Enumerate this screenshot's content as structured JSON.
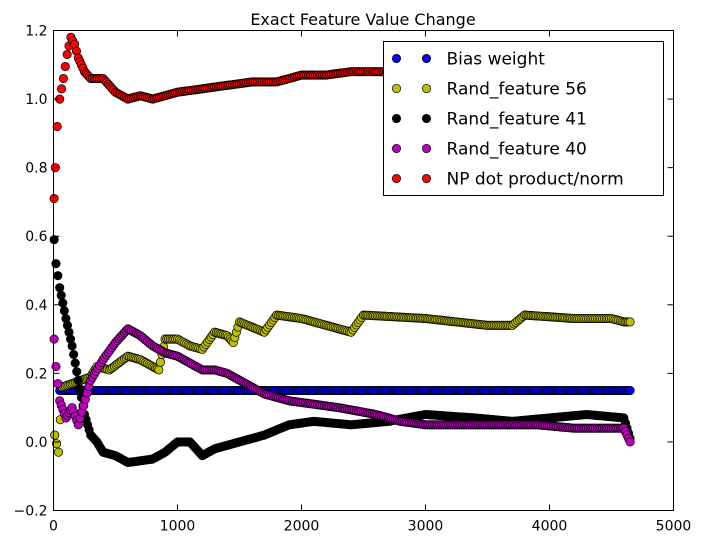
{
  "chart_data": {
    "type": "scatter",
    "title": "Exact Feature Value Change",
    "xlabel": "",
    "ylabel": "",
    "xlim": [
      0,
      5000
    ],
    "ylim": [
      -0.2,
      1.2
    ],
    "x_ticks": [
      "0",
      "1000",
      "2000",
      "3000",
      "4000",
      "5000"
    ],
    "y_ticks": [
      "−0.2",
      "0.0",
      "0.2",
      "0.4",
      "0.6",
      "0.8",
      "1.0",
      "1.2"
    ],
    "grid": false,
    "legend_position": "top-right",
    "series": [
      {
        "name": "Bias weight",
        "color": "#0000ff",
        "points": [
          [
            50,
            0.15
          ],
          [
            500,
            0.15
          ],
          [
            1000,
            0.15
          ],
          [
            1500,
            0.15
          ],
          [
            2000,
            0.15
          ],
          [
            2500,
            0.15
          ],
          [
            3000,
            0.15
          ],
          [
            3500,
            0.15
          ],
          [
            4000,
            0.15
          ],
          [
            4500,
            0.15
          ],
          [
            4650,
            0.15
          ]
        ]
      },
      {
        "name": "Rand_feature 56",
        "color": "#bfbf00",
        "points": [
          [
            10,
            0.02
          ],
          [
            40,
            -0.03
          ],
          [
            70,
            0.16
          ],
          [
            150,
            0.17
          ],
          [
            300,
            0.19
          ],
          [
            350,
            0.22
          ],
          [
            450,
            0.21
          ],
          [
            600,
            0.25
          ],
          [
            700,
            0.24
          ],
          [
            800,
            0.22
          ],
          [
            850,
            0.21
          ],
          [
            900,
            0.3
          ],
          [
            1000,
            0.3
          ],
          [
            1100,
            0.28
          ],
          [
            1200,
            0.27
          ],
          [
            1300,
            0.32
          ],
          [
            1400,
            0.31
          ],
          [
            1450,
            0.29
          ],
          [
            1500,
            0.35
          ],
          [
            1700,
            0.32
          ],
          [
            1800,
            0.37
          ],
          [
            2000,
            0.36
          ],
          [
            2200,
            0.34
          ],
          [
            2400,
            0.32
          ],
          [
            2500,
            0.37
          ],
          [
            3000,
            0.36
          ],
          [
            3500,
            0.34
          ],
          [
            3700,
            0.34
          ],
          [
            3800,
            0.37
          ],
          [
            4200,
            0.36
          ],
          [
            4500,
            0.36
          ],
          [
            4600,
            0.35
          ],
          [
            4650,
            0.35
          ]
        ]
      },
      {
        "name": "Rand_feature 41",
        "color": "#000000",
        "points": [
          [
            5,
            0.59
          ],
          [
            20,
            0.52
          ],
          [
            50,
            0.45
          ],
          [
            100,
            0.36
          ],
          [
            150,
            0.28
          ],
          [
            200,
            0.18
          ],
          [
            250,
            0.08
          ],
          [
            300,
            0.02
          ],
          [
            350,
            0.0
          ],
          [
            400,
            -0.03
          ],
          [
            500,
            -0.04
          ],
          [
            600,
            -0.06
          ],
          [
            800,
            -0.05
          ],
          [
            900,
            -0.03
          ],
          [
            1000,
            0.0
          ],
          [
            1100,
            0.0
          ],
          [
            1200,
            -0.04
          ],
          [
            1300,
            -0.02
          ],
          [
            1500,
            0.0
          ],
          [
            1700,
            0.02
          ],
          [
            1900,
            0.05
          ],
          [
            2100,
            0.06
          ],
          [
            2400,
            0.05
          ],
          [
            2700,
            0.06
          ],
          [
            3000,
            0.08
          ],
          [
            3400,
            0.07
          ],
          [
            3700,
            0.06
          ],
          [
            4000,
            0.07
          ],
          [
            4300,
            0.08
          ],
          [
            4600,
            0.07
          ],
          [
            4650,
            0.01
          ]
        ]
      },
      {
        "name": "Rand_feature 40",
        "color": "#bf00bf",
        "points": [
          [
            5,
            0.3
          ],
          [
            20,
            0.22
          ],
          [
            50,
            0.12
          ],
          [
            100,
            0.07
          ],
          [
            150,
            0.1
          ],
          [
            200,
            0.05
          ],
          [
            300,
            0.18
          ],
          [
            400,
            0.24
          ],
          [
            500,
            0.29
          ],
          [
            600,
            0.33
          ],
          [
            700,
            0.31
          ],
          [
            800,
            0.28
          ],
          [
            900,
            0.26
          ],
          [
            1000,
            0.25
          ],
          [
            1100,
            0.23
          ],
          [
            1200,
            0.21
          ],
          [
            1300,
            0.21
          ],
          [
            1400,
            0.2
          ],
          [
            1500,
            0.18
          ],
          [
            1700,
            0.14
          ],
          [
            1900,
            0.12
          ],
          [
            2100,
            0.11
          ],
          [
            2300,
            0.1
          ],
          [
            2600,
            0.08
          ],
          [
            2800,
            0.06
          ],
          [
            3000,
            0.05
          ],
          [
            3300,
            0.05
          ],
          [
            3600,
            0.05
          ],
          [
            3900,
            0.05
          ],
          [
            4200,
            0.04
          ],
          [
            4400,
            0.04
          ],
          [
            4600,
            0.04
          ],
          [
            4650,
            0.0
          ]
        ]
      },
      {
        "name": "NP dot product/norm",
        "color": "#ff0000",
        "points": [
          [
            5,
            0.71
          ],
          [
            15,
            0.8
          ],
          [
            30,
            0.92
          ],
          [
            50,
            1.0
          ],
          [
            80,
            1.06
          ],
          [
            110,
            1.13
          ],
          [
            140,
            1.18
          ],
          [
            170,
            1.16
          ],
          [
            200,
            1.12
          ],
          [
            250,
            1.08
          ],
          [
            300,
            1.06
          ],
          [
            400,
            1.06
          ],
          [
            500,
            1.02
          ],
          [
            600,
            1.0
          ],
          [
            700,
            1.01
          ],
          [
            800,
            1.0
          ],
          [
            900,
            1.01
          ],
          [
            1000,
            1.02
          ],
          [
            1200,
            1.03
          ],
          [
            1400,
            1.04
          ],
          [
            1600,
            1.05
          ],
          [
            1800,
            1.05
          ],
          [
            2000,
            1.07
          ],
          [
            2200,
            1.07
          ],
          [
            2400,
            1.08
          ],
          [
            2600,
            1.08
          ],
          [
            2800,
            1.08
          ],
          [
            3000,
            1.08
          ],
          [
            3200,
            1.08
          ],
          [
            3500,
            1.08
          ],
          [
            3800,
            1.08
          ],
          [
            4100,
            1.08
          ],
          [
            4400,
            1.08
          ],
          [
            4650,
            1.08
          ]
        ]
      }
    ]
  }
}
